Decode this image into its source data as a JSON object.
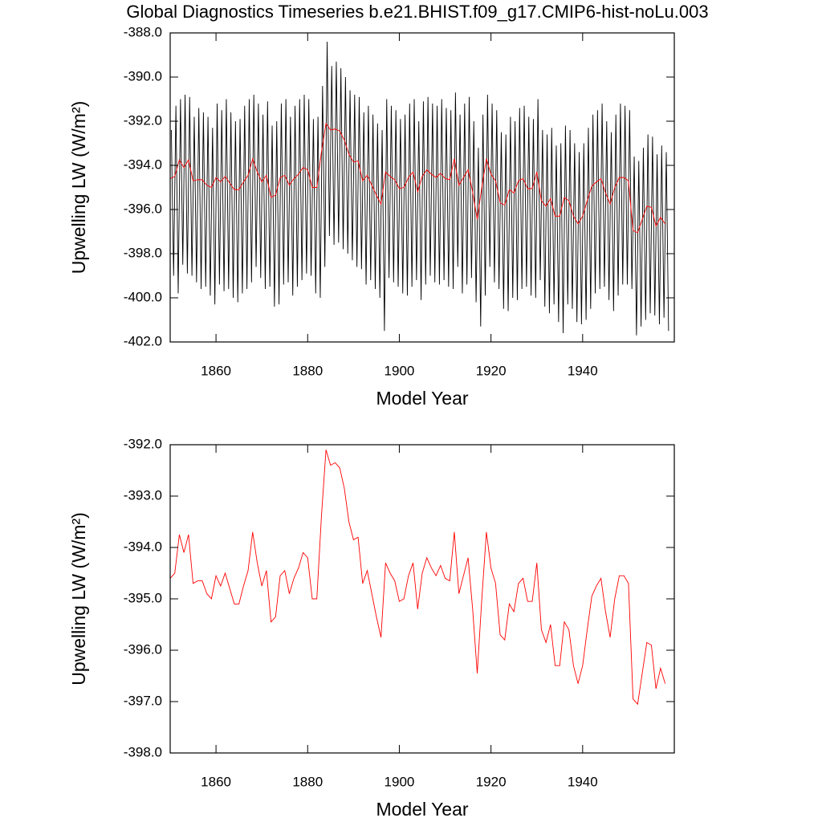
{
  "chart_data": [
    {
      "type": "line",
      "title": "Global Diagnostics Timeseries b.e21.BHIST.f09_g17.CMIP6-hist-noLu.003",
      "xlabel": "Model Year",
      "ylabel": "Upwelling LW (W/m²)",
      "xlim": [
        1850,
        1960
      ],
      "xticks": [
        1860,
        1880,
        1900,
        1920,
        1940
      ],
      "ylim": [
        -402,
        -388
      ],
      "yticks": [
        {
          "value": -388,
          "label": "-388.0"
        },
        {
          "value": -390,
          "label": "-390.0"
        },
        {
          "value": -392,
          "label": "-392.0"
        },
        {
          "value": -394,
          "label": "-394.0"
        },
        {
          "value": -396,
          "label": "-396.0"
        },
        {
          "value": -398,
          "label": "-398.0"
        },
        {
          "value": -400,
          "label": "-400.0"
        },
        {
          "value": -402,
          "label": "-402.0"
        }
      ],
      "x": [
        1850,
        1851,
        1852,
        1853,
        1854,
        1855,
        1856,
        1857,
        1858,
        1859,
        1860,
        1861,
        1862,
        1863,
        1864,
        1865,
        1866,
        1867,
        1868,
        1869,
        1870,
        1871,
        1872,
        1873,
        1874,
        1875,
        1876,
        1877,
        1878,
        1879,
        1880,
        1881,
        1882,
        1883,
        1884,
        1885,
        1886,
        1887,
        1888,
        1889,
        1890,
        1891,
        1892,
        1893,
        1894,
        1895,
        1896,
        1897,
        1898,
        1899,
        1900,
        1901,
        1902,
        1903,
        1904,
        1905,
        1906,
        1907,
        1908,
        1909,
        1910,
        1911,
        1912,
        1913,
        1914,
        1915,
        1916,
        1917,
        1918,
        1919,
        1920,
        1921,
        1922,
        1923,
        1924,
        1925,
        1926,
        1927,
        1928,
        1929,
        1930,
        1931,
        1932,
        1933,
        1934,
        1935,
        1936,
        1937,
        1938,
        1939,
        1940,
        1941,
        1942,
        1943,
        1944,
        1945,
        1946,
        1947,
        1948,
        1949,
        1950,
        1951,
        1952,
        1953,
        1954,
        1955,
        1956,
        1957,
        1958
      ],
      "series": [
        {
          "color": "#000000",
          "x": [
            1850.25,
            1850.75,
            1851.25,
            1851.75,
            1852.25,
            1852.75,
            1853.25,
            1853.75,
            1854.25,
            1854.75,
            1855.25,
            1855.75,
            1856.25,
            1856.75,
            1857.25,
            1857.75,
            1858.25,
            1858.75,
            1859.25,
            1859.75,
            1860.25,
            1860.75,
            1861.25,
            1861.75,
            1862.25,
            1862.75,
            1863.25,
            1863.75,
            1864.25,
            1864.75,
            1865.25,
            1865.75,
            1866.25,
            1866.75,
            1867.25,
            1867.75,
            1868.25,
            1868.75,
            1869.25,
            1869.75,
            1870.25,
            1870.75,
            1871.25,
            1871.75,
            1872.25,
            1872.75,
            1873.25,
            1873.75,
            1874.25,
            1874.75,
            1875.25,
            1875.75,
            1876.25,
            1876.75,
            1877.25,
            1877.75,
            1878.25,
            1878.75,
            1879.25,
            1879.75,
            1880.25,
            1880.75,
            1881.25,
            1881.75,
            1882.25,
            1882.75,
            1883.25,
            1883.75,
            1884.25,
            1884.75,
            1885.25,
            1885.75,
            1886.25,
            1886.75,
            1887.25,
            1887.75,
            1888.25,
            1888.75,
            1889.25,
            1889.75,
            1890.25,
            1890.75,
            1891.25,
            1891.75,
            1892.25,
            1892.75,
            1893.25,
            1893.75,
            1894.25,
            1894.75,
            1895.25,
            1895.75,
            1896.25,
            1896.75,
            1897.25,
            1897.75,
            1898.25,
            1898.75,
            1899.25,
            1899.75,
            1900.25,
            1900.75,
            1901.25,
            1901.75,
            1902.25,
            1902.75,
            1903.25,
            1903.75,
            1904.25,
            1904.75,
            1905.25,
            1905.75,
            1906.25,
            1906.75,
            1907.25,
            1907.75,
            1908.25,
            1908.75,
            1909.25,
            1909.75,
            1910.25,
            1910.75,
            1911.25,
            1911.75,
            1912.25,
            1912.75,
            1913.25,
            1913.75,
            1914.25,
            1914.75,
            1915.25,
            1915.75,
            1916.25,
            1916.75,
            1917.25,
            1917.75,
            1918.25,
            1918.75,
            1919.25,
            1919.75,
            1920.25,
            1920.75,
            1921.25,
            1921.75,
            1922.25,
            1922.75,
            1923.25,
            1923.75,
            1924.25,
            1924.75,
            1925.25,
            1925.75,
            1926.25,
            1926.75,
            1927.25,
            1927.75,
            1928.25,
            1928.75,
            1929.25,
            1929.75,
            1930.25,
            1930.75,
            1931.25,
            1931.75,
            1932.25,
            1932.75,
            1933.25,
            1933.75,
            1934.25,
            1934.75,
            1935.25,
            1935.75,
            1936.25,
            1936.75,
            1937.25,
            1937.75,
            1938.25,
            1938.75,
            1939.25,
            1939.75,
            1940.25,
            1940.75,
            1941.25,
            1941.75,
            1942.25,
            1942.75,
            1943.25,
            1943.75,
            1944.25,
            1944.75,
            1945.25,
            1945.75,
            1946.25,
            1946.75,
            1947.25,
            1947.75,
            1948.25,
            1948.75,
            1949.25,
            1949.75,
            1950.25,
            1950.75,
            1951.25,
            1951.75,
            1952.25,
            1952.75,
            1953.25,
            1953.75,
            1954.25,
            1954.75,
            1955.25,
            1955.75,
            1956.25,
            1956.75,
            1957.25,
            1957.75,
            1958.25,
            1958.75
          ],
          "values": [
            -392.4,
            -399.0,
            -391.3,
            -399.8,
            -391.0,
            -398.5,
            -390.8,
            -398.9,
            -390.9,
            -399.0,
            -391.8,
            -399.3,
            -391.4,
            -399.6,
            -391.6,
            -399.5,
            -391.8,
            -399.9,
            -392.3,
            -400.3,
            -391.2,
            -399.4,
            -391.5,
            -399.7,
            -391.0,
            -399.6,
            -391.6,
            -400.0,
            -392.0,
            -400.2,
            -391.9,
            -399.8,
            -391.3,
            -399.6,
            -391.0,
            -399.3,
            -390.8,
            -398.6,
            -391.2,
            -399.1,
            -391.7,
            -399.6,
            -391.1,
            -399.5,
            -392.2,
            -400.4,
            -392.0,
            -400.3,
            -391.2,
            -399.4,
            -391.0,
            -399.3,
            -391.8,
            -399.9,
            -391.3,
            -399.5,
            -391.0,
            -399.2,
            -390.8,
            -398.9,
            -391.0,
            -399.0,
            -391.9,
            -399.8,
            -391.8,
            -400.0,
            -390.4,
            -398.6,
            -388.4,
            -397.2,
            -389.5,
            -397.6,
            -389.3,
            -397.5,
            -389.6,
            -397.8,
            -390.0,
            -398.0,
            -390.6,
            -398.3,
            -390.8,
            -398.6,
            -390.9,
            -398.7,
            -391.6,
            -399.4,
            -391.3,
            -399.2,
            -391.7,
            -399.6,
            -392.1,
            -400.0,
            -392.4,
            -401.5,
            -391.0,
            -399.1,
            -391.3,
            -399.3,
            -391.5,
            -399.5,
            -391.9,
            -399.8,
            -391.7,
            -399.9,
            -391.2,
            -399.5,
            -391.0,
            -399.2,
            -392.0,
            -400.1,
            -391.1,
            -399.4,
            -390.9,
            -399.0,
            -391.2,
            -399.3,
            -391.3,
            -399.4,
            -391.0,
            -399.2,
            -391.4,
            -399.5,
            -391.5,
            -399.6,
            -390.7,
            -398.6,
            -391.7,
            -399.8,
            -391.2,
            -399.4,
            -390.9,
            -399.1,
            -392.0,
            -400.2,
            -393.2,
            -401.3,
            -391.7,
            -399.9,
            -390.8,
            -398.6,
            -391.2,
            -399.3,
            -391.5,
            -399.6,
            -392.5,
            -400.5,
            -392.6,
            -400.6,
            -391.8,
            -400.0,
            -392.0,
            -400.1,
            -391.4,
            -399.6,
            -391.3,
            -399.5,
            -391.8,
            -399.9,
            -391.9,
            -400.0,
            -391.0,
            -399.2,
            -392.4,
            -400.4,
            -392.6,
            -400.7,
            -392.3,
            -400.3,
            -393.1,
            -401.1,
            -393.0,
            -401.6,
            -392.2,
            -400.3,
            -392.4,
            -400.5,
            -393.0,
            -401.1,
            -393.4,
            -401.2,
            -393.0,
            -401.0,
            -392.3,
            -400.5,
            -391.7,
            -399.8,
            -391.5,
            -399.6,
            -391.2,
            -399.5,
            -392.0,
            -400.1,
            -392.5,
            -400.6,
            -391.7,
            -399.9,
            -391.2,
            -399.4,
            -391.3,
            -399.4,
            -391.5,
            -399.6,
            -393.6,
            -401.7,
            -393.8,
            -401.3,
            -393.2,
            -401.0,
            -392.6,
            -400.7,
            -392.7,
            -400.8,
            -393.5,
            -401.2,
            -393.1,
            -400.9,
            -393.4,
            -401.5
          ]
        },
        {
          "color": "#ff0000",
          "values": [
            -394.6,
            -394.5,
            -393.75,
            -394.1,
            -393.75,
            -394.7,
            -394.65,
            -394.65,
            -394.9,
            -395.0,
            -394.55,
            -394.75,
            -394.5,
            -394.8,
            -395.1,
            -395.1,
            -394.75,
            -394.45,
            -393.7,
            -394.3,
            -394.75,
            -394.45,
            -395.45,
            -395.35,
            -394.55,
            -394.45,
            -394.9,
            -394.6,
            -394.4,
            -394.1,
            -394.2,
            -395.0,
            -395.0,
            -393.4,
            -392.1,
            -392.4,
            -392.35,
            -392.45,
            -392.85,
            -393.5,
            -393.85,
            -393.8,
            -394.7,
            -394.45,
            -394.9,
            -395.35,
            -395.75,
            -394.3,
            -394.5,
            -394.65,
            -395.05,
            -395.0,
            -394.55,
            -394.3,
            -395.2,
            -394.5,
            -394.2,
            -394.4,
            -394.55,
            -394.35,
            -394.6,
            -394.65,
            -393.7,
            -394.9,
            -394.55,
            -394.2,
            -395.2,
            -396.45,
            -395.0,
            -393.7,
            -394.4,
            -394.7,
            -395.7,
            -395.8,
            -395.1,
            -395.25,
            -394.7,
            -394.6,
            -395.05,
            -395.05,
            -394.3,
            -395.6,
            -395.85,
            -395.5,
            -396.3,
            -396.3,
            -395.45,
            -395.6,
            -396.3,
            -396.65,
            -396.3,
            -395.6,
            -394.95,
            -394.75,
            -394.6,
            -395.25,
            -395.75,
            -395.0,
            -394.55,
            -394.55,
            -394.7,
            -396.95,
            -397.05,
            -396.45,
            -395.85,
            -395.9,
            -396.75,
            -396.35,
            -396.65
          ]
        }
      ]
    },
    {
      "type": "line",
      "xlabel": "Model Year",
      "ylabel": "Upwelling LW (W/m²)",
      "xlim": [
        1850,
        1960
      ],
      "xticks": [
        1860,
        1880,
        1900,
        1920,
        1940
      ],
      "ylim": [
        -398,
        -392
      ],
      "yticks": [
        {
          "value": -392,
          "label": "-392.0"
        },
        {
          "value": -393,
          "label": "-393.0"
        },
        {
          "value": -394,
          "label": "-394.0"
        },
        {
          "value": -395,
          "label": "-395.0"
        },
        {
          "value": -396,
          "label": "-396.0"
        },
        {
          "value": -397,
          "label": "-397.0"
        },
        {
          "value": -398,
          "label": "-398.0"
        }
      ],
      "x": [
        1850,
        1851,
        1852,
        1853,
        1854,
        1855,
        1856,
        1857,
        1858,
        1859,
        1860,
        1861,
        1862,
        1863,
        1864,
        1865,
        1866,
        1867,
        1868,
        1869,
        1870,
        1871,
        1872,
        1873,
        1874,
        1875,
        1876,
        1877,
        1878,
        1879,
        1880,
        1881,
        1882,
        1883,
        1884,
        1885,
        1886,
        1887,
        1888,
        1889,
        1890,
        1891,
        1892,
        1893,
        1894,
        1895,
        1896,
        1897,
        1898,
        1899,
        1900,
        1901,
        1902,
        1903,
        1904,
        1905,
        1906,
        1907,
        1908,
        1909,
        1910,
        1911,
        1912,
        1913,
        1914,
        1915,
        1916,
        1917,
        1918,
        1919,
        1920,
        1921,
        1922,
        1923,
        1924,
        1925,
        1926,
        1927,
        1928,
        1929,
        1930,
        1931,
        1932,
        1933,
        1934,
        1935,
        1936,
        1937,
        1938,
        1939,
        1940,
        1941,
        1942,
        1943,
        1944,
        1945,
        1946,
        1947,
        1948,
        1949,
        1950,
        1951,
        1952,
        1953,
        1954,
        1955,
        1956,
        1957,
        1958
      ],
      "series": [
        {
          "color": "#ff0000",
          "values": [
            -394.6,
            -394.5,
            -393.75,
            -394.1,
            -393.75,
            -394.7,
            -394.65,
            -394.65,
            -394.9,
            -395.0,
            -394.55,
            -394.75,
            -394.5,
            -394.8,
            -395.1,
            -395.1,
            -394.75,
            -394.45,
            -393.7,
            -394.3,
            -394.75,
            -394.45,
            -395.45,
            -395.35,
            -394.55,
            -394.45,
            -394.9,
            -394.6,
            -394.4,
            -394.1,
            -394.2,
            -395.0,
            -395.0,
            -393.4,
            -392.1,
            -392.4,
            -392.35,
            -392.45,
            -392.85,
            -393.5,
            -393.85,
            -393.8,
            -394.7,
            -394.45,
            -394.9,
            -395.35,
            -395.75,
            -394.3,
            -394.5,
            -394.65,
            -395.05,
            -395.0,
            -394.55,
            -394.3,
            -395.2,
            -394.5,
            -394.2,
            -394.4,
            -394.55,
            -394.35,
            -394.6,
            -394.65,
            -393.7,
            -394.9,
            -394.55,
            -394.2,
            -395.2,
            -396.45,
            -395.0,
            -393.7,
            -394.4,
            -394.7,
            -395.7,
            -395.8,
            -395.1,
            -395.25,
            -394.7,
            -394.6,
            -395.05,
            -395.05,
            -394.3,
            -395.6,
            -395.85,
            -395.5,
            -396.3,
            -396.3,
            -395.45,
            -395.6,
            -396.3,
            -396.65,
            -396.3,
            -395.6,
            -394.95,
            -394.75,
            -394.6,
            -395.25,
            -395.75,
            -395.0,
            -394.55,
            -394.55,
            -394.7,
            -396.95,
            -397.05,
            -396.45,
            -395.85,
            -395.9,
            -396.75,
            -396.35,
            -396.65
          ]
        }
      ]
    }
  ]
}
